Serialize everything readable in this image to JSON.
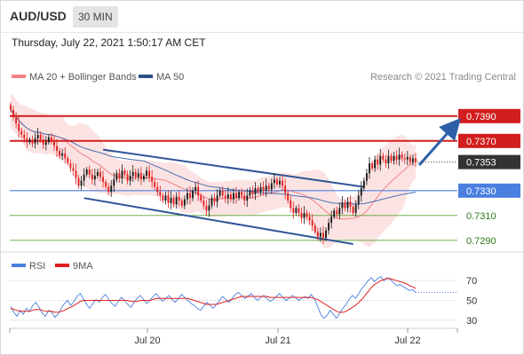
{
  "header": {
    "symbol": "AUD/USD",
    "timeframe": "30 MIN",
    "datetime": "Thursday, July 22, 2021 1:50:17 AM CET"
  },
  "legend": {
    "ma20_label": "MA 20 + Bollinger Bands",
    "ma50_label": "MA 50",
    "credit": "Research © 2021 Trading Central",
    "rsi_label": "RSI",
    "ma9_label": "9MA"
  },
  "colors": {
    "up": "#1a1a1a",
    "down": "#e02020",
    "resistance": "#d21e1e",
    "support_blue": "#4a7fe0",
    "support_green": "#5aa332",
    "channel": "#2e5597",
    "arrow": "#2e5fa8",
    "bollinger_fill": "#fbd9d9",
    "ma20": "#f08080",
    "ma50": "#4a6fb0",
    "rsi": "#4a7fe0",
    "rsi_ma9": "#e02020",
    "current_price_bg": "#333333"
  },
  "chart_data": [
    {
      "type": "candlestick",
      "title": "AUD/USD 30 MIN",
      "x_ticks": [
        "Jul 20",
        "Jul 21",
        "Jul 22"
      ],
      "ylim": [
        0.7282,
        0.7412
      ],
      "current_price": 0.7353,
      "levels": [
        {
          "value": 0.739,
          "label": "0.7390",
          "kind": "resistance"
        },
        {
          "value": 0.737,
          "label": "0.7370",
          "kind": "resistance"
        },
        {
          "value": 0.733,
          "label": "0.7330",
          "kind": "pivot"
        },
        {
          "value": 0.731,
          "label": "0.7310",
          "kind": "support"
        },
        {
          "value": 0.729,
          "label": "0.7290",
          "kind": "support"
        }
      ],
      "closes": [
        0.7395,
        0.7389,
        0.7384,
        0.7378,
        0.7375,
        0.7372,
        0.7369,
        0.7371,
        0.7368,
        0.7372,
        0.7375,
        0.7371,
        0.7367,
        0.7369,
        0.7373,
        0.737,
        0.7366,
        0.7362,
        0.7358,
        0.736,
        0.7356,
        0.7352,
        0.7348,
        0.7346,
        0.734,
        0.7334,
        0.7338,
        0.7343,
        0.7347,
        0.7343,
        0.7339,
        0.7342,
        0.7345,
        0.7341,
        0.7337,
        0.7333,
        0.7329,
        0.7334,
        0.7339,
        0.7344,
        0.734,
        0.7346,
        0.7343,
        0.7338,
        0.7342,
        0.7345,
        0.7341,
        0.7344,
        0.7339,
        0.7342,
        0.7346,
        0.7341,
        0.7337,
        0.7333,
        0.7329,
        0.7326,
        0.7322,
        0.7326,
        0.732,
        0.7324,
        0.7319,
        0.7325,
        0.7322,
        0.7318,
        0.7323,
        0.7328,
        0.7324,
        0.733,
        0.7333,
        0.7326,
        0.7322,
        0.7318,
        0.7314,
        0.7318,
        0.7324,
        0.7321,
        0.7326,
        0.733,
        0.7326,
        0.7324,
        0.7327,
        0.7323,
        0.7328,
        0.7324,
        0.7329,
        0.7326,
        0.7322,
        0.7326,
        0.733,
        0.7327,
        0.7332,
        0.7329,
        0.7333,
        0.733,
        0.7334,
        0.7331,
        0.7336,
        0.7339,
        0.7335,
        0.7338,
        0.7334,
        0.7328,
        0.7322,
        0.7316,
        0.7312,
        0.7316,
        0.7312,
        0.7308,
        0.7312,
        0.7309,
        0.7306,
        0.7302,
        0.7297,
        0.7293,
        0.7296,
        0.7292,
        0.7298,
        0.7304,
        0.7309,
        0.7314,
        0.7311,
        0.7316,
        0.732,
        0.7316,
        0.7321,
        0.7317,
        0.7312,
        0.7319,
        0.7326,
        0.7332,
        0.7338,
        0.7344,
        0.7352,
        0.7348,
        0.7355,
        0.7351,
        0.7358,
        0.7355,
        0.7352,
        0.7358,
        0.7354,
        0.7358,
        0.7355,
        0.7359,
        0.7356,
        0.7355,
        0.7357,
        0.7353,
        0.7356,
        0.7353
      ],
      "indicators": {
        "ma20": "MA 20 + Bollinger Bands",
        "ma50": "MA 50"
      }
    },
    {
      "type": "line",
      "title": "RSI",
      "ylim": [
        20,
        80
      ],
      "y_ticks": [
        70,
        50,
        30
      ],
      "series": [
        {
          "name": "RSI",
          "values": [
            44,
            38,
            34,
            40,
            36,
            42,
            39,
            45,
            48,
            43,
            37,
            34,
            40,
            38,
            33,
            36,
            42,
            47,
            50,
            45,
            49,
            54,
            57,
            52,
            46,
            42,
            47,
            51,
            48,
            53,
            56,
            51,
            47,
            44,
            49,
            53,
            50,
            46,
            43,
            48,
            52,
            55,
            51,
            47,
            50,
            54,
            57,
            53,
            49,
            52,
            55,
            51,
            48,
            52,
            56,
            53,
            50,
            47,
            45,
            42,
            40,
            44,
            48,
            45,
            42,
            46,
            50,
            54,
            51,
            48,
            52,
            56,
            58,
            55,
            52,
            54,
            57,
            53,
            50,
            53,
            55,
            52,
            49,
            51,
            54,
            57,
            53,
            50,
            52,
            55,
            53,
            50,
            52,
            54,
            52,
            56,
            52,
            44,
            36,
            32,
            35,
            40,
            36,
            32,
            37,
            42,
            46,
            51,
            55,
            52,
            57,
            62,
            66,
            70,
            73,
            69,
            72,
            74,
            70,
            73,
            71,
            68,
            65,
            66,
            64,
            62,
            60,
            61,
            58
          ]
        },
        {
          "name": "9MA",
          "values": [
            42,
            41,
            40,
            39,
            39,
            39,
            39,
            40,
            41,
            41,
            40,
            39,
            39,
            39,
            38,
            38,
            39,
            40,
            42,
            43,
            45,
            47,
            49,
            50,
            50,
            50,
            50,
            50,
            50,
            50,
            50,
            50,
            50,
            50,
            50,
            50,
            50,
            50,
            49,
            49,
            49,
            50,
            50,
            50,
            50,
            51,
            52,
            52,
            52,
            52,
            52,
            52,
            52,
            52,
            52,
            52,
            52,
            51,
            50,
            49,
            48,
            47,
            46,
            46,
            46,
            46,
            47,
            48,
            49,
            50,
            51,
            52,
            53,
            54,
            54,
            54,
            54,
            54,
            54,
            54,
            54,
            54,
            53,
            53,
            53,
            53,
            53,
            53,
            53,
            53,
            53,
            53,
            53,
            53,
            53,
            53,
            52,
            51,
            49,
            47,
            45,
            43,
            41,
            39,
            38,
            38,
            39,
            41,
            43,
            45,
            48,
            51,
            55,
            59,
            63,
            66,
            68,
            70,
            71,
            72,
            72,
            71,
            70,
            69,
            68,
            67,
            65,
            64,
            62
          ]
        }
      ]
    }
  ]
}
